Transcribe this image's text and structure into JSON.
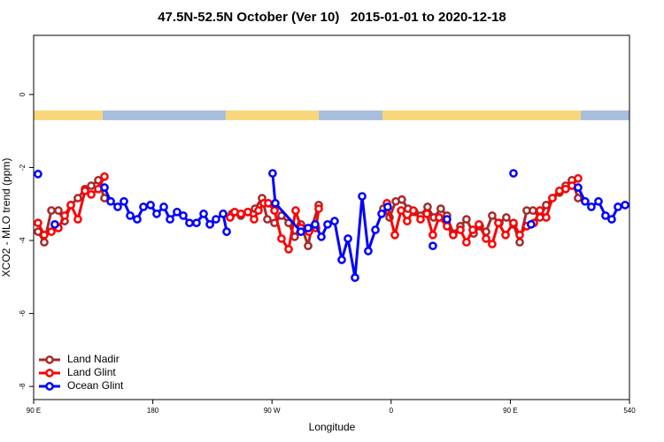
{
  "chart_data": {
    "type": "line",
    "title": "47.5N-52.5N October (Ver 10)   2015-01-01 to 2020-12-18",
    "x_label": "Longitude",
    "y_label": "XCO2 - MLO trend (ppm)",
    "xlim": [
      90,
      540
    ],
    "ylim": [
      -8.36,
      1.62
    ],
    "xticks": [
      {
        "value": 90,
        "label": "90 E"
      },
      180,
      {
        "value": 270,
        "label": "90 W"
      },
      {
        "value": 360,
        "label": "0"
      },
      {
        "value": 450,
        "label": "90 E"
      },
      540
    ],
    "yticks": [
      0,
      -2,
      -4,
      -6,
      -8
    ],
    "legend": "bottom-left",
    "series": [
      {
        "name": "Land Nadir",
        "color": "#a52a2a",
        "x": [
          93.3,
          98.0,
          103.4,
          108.7,
          113.4,
          118.1,
          123.4,
          128.8,
          133.5,
          138.8,
          143.5,
          null,
          239.8,
          246.5,
          251.8,
          257.2,
          262.5,
          266.5,
          271.9,
          277.2,
          282.6,
          287.2,
          291.9,
          297.3,
          299.9,
          305.3,
          null,
          354.1,
          358.8,
          363.5,
          368.1,
          372.8,
          377.5,
          382.2,
          387.5,
          392.2,
          397.5,
          402.2,
          406.9,
          412.3,
          416.9,
          422.3,
          427.0,
          431.7,
          436.3,
          441.7,
          447.0,
          452.4,
          457.1,
          462.4,
          467.1,
          472.4,
          477.1,
          481.8,
          487.1,
          491.8,
          496.5,
          501.2
        ],
        "values": [
          -3.76,
          -4.05,
          -3.18,
          -3.18,
          -3.47,
          -3.03,
          -2.84,
          -2.59,
          -2.5,
          -2.35,
          -2.84,
          null,
          -3.27,
          -3.32,
          -3.22,
          -3.13,
          -2.84,
          -3.42,
          -3.52,
          -3.32,
          -3.52,
          -3.9,
          -3.56,
          -4.15,
          -3.66,
          -3.03,
          null,
          -3.13,
          -3.37,
          -2.93,
          -2.88,
          -3.13,
          -3.22,
          -3.32,
          -3.08,
          -3.37,
          -3.13,
          -3.32,
          -3.81,
          -3.61,
          -3.42,
          -3.81,
          -3.61,
          -3.76,
          -3.32,
          -3.52,
          -3.37,
          -3.56,
          -4.05,
          -3.18,
          -3.18,
          -3.37,
          -3.03,
          -2.84,
          -2.69,
          -2.5,
          -2.35,
          -2.84
        ]
      },
      {
        "name": "Land Glint",
        "color": "#ff0000",
        "x": [
          93.3,
          98.0,
          103.4,
          108.7,
          113.4,
          118.1,
          123.4,
          128.8,
          133.5,
          138.8,
          143.5,
          null,
          238.4,
          241.8,
          246.5,
          251.8,
          256.5,
          259.8,
          263.8,
          267.2,
          271.9,
          277.2,
          282.6,
          287.9,
          291.9,
          297.9,
          303.3,
          305.3,
          null,
          356.8,
          362.8,
          367.5,
          372.1,
          376.8,
          382.2,
          386.9,
          391.5,
          396.2,
          402.2,
          406.9,
          412.3,
          416.9,
          421.6,
          426.3,
          431.7,
          436.3,
          441.0,
          446.4,
          452.4,
          457.1,
          462.4,
          467.8,
          472.4,
          477.1,
          481.8,
          487.1,
          491.8,
          496.5,
          501.2
        ],
        "values": [
          -3.52,
          -3.85,
          -3.76,
          -3.66,
          -3.32,
          -3.03,
          -3.42,
          -2.64,
          -2.74,
          -2.59,
          -2.25,
          null,
          -3.37,
          -3.22,
          -3.27,
          -3.22,
          -3.42,
          -3.18,
          -2.98,
          -2.98,
          -3.18,
          -3.95,
          -4.24,
          -3.18,
          -3.66,
          -3.76,
          -3.66,
          -3.13,
          null,
          -2.98,
          -3.85,
          -3.18,
          -3.47,
          -3.18,
          -3.42,
          -3.27,
          -3.85,
          -3.37,
          -3.61,
          -3.85,
          -3.71,
          -4.05,
          -3.71,
          -3.56,
          -3.95,
          -4.1,
          -3.52,
          -3.85,
          -3.52,
          -3.85,
          -3.61,
          -3.52,
          -3.18,
          -3.37,
          -2.84,
          -2.64,
          -2.59,
          -2.5,
          -2.3
        ]
      },
      {
        "name": "Ocean Glint",
        "color": "#0000ff",
        "x": [
          93.3,
          null,
          106.0,
          null,
          143.5,
          148.2,
          153.5,
          158.2,
          162.9,
          168.2,
          172.9,
          178.3,
          182.9,
          188.3,
          193.0,
          198.3,
          203.0,
          207.7,
          213.0,
          218.4,
          223.1,
          227.7,
          233.1,
          235.8,
          null,
          270.5,
          272.5,
          291.9,
          297.3,
          302.6,
          307.3,
          312.0,
          317.3,
          322.7,
          327.4,
          332.7,
          338.1,
          342.7,
          348.1,
          352.8,
          357.4,
          null,
          391.5,
          null,
          402.2,
          null,
          452.4,
          null,
          465.7,
          null,
          501.2,
          506.5,
          511.2,
          516.6,
          521.9,
          526.6,
          531.3,
          536.7
        ],
        "values": [
          -2.18,
          null,
          -3.56,
          null,
          -2.55,
          -2.93,
          -3.08,
          -2.93,
          -3.32,
          -3.42,
          -3.08,
          -3.03,
          -3.27,
          -3.08,
          -3.42,
          -3.22,
          -3.32,
          -3.52,
          -3.52,
          -3.27,
          -3.56,
          -3.42,
          -3.27,
          -3.76,
          null,
          -2.16,
          -2.98,
          -3.76,
          -3.66,
          -3.56,
          -3.9,
          -3.56,
          -3.47,
          -4.53,
          -3.95,
          -5.02,
          -2.79,
          -4.29,
          -3.71,
          -3.27,
          -3.08,
          null,
          -4.15,
          null,
          -3.42,
          null,
          -2.16,
          null,
          -3.56,
          null,
          -2.55,
          -2.93,
          -3.08,
          -2.93,
          -3.32,
          -3.42,
          -3.08,
          -3.03
        ]
      }
    ]
  }
}
